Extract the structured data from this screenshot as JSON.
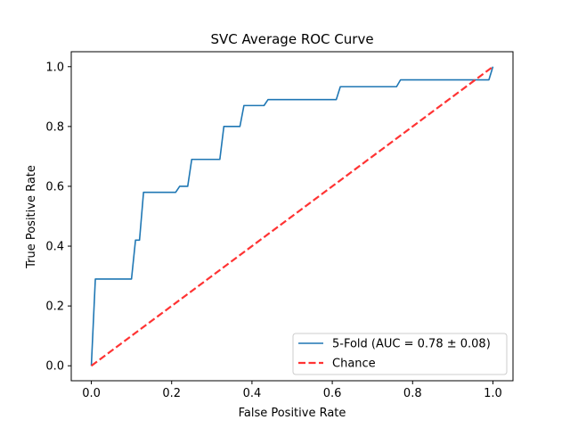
{
  "chart_data": {
    "type": "line",
    "title": "SVC Average ROC Curve",
    "xlabel": "False Positive Rate",
    "ylabel": "True Positive Rate",
    "xlim": [
      -0.05,
      1.05
    ],
    "ylim": [
      -0.05,
      1.05
    ],
    "xticks": [
      0.0,
      0.2,
      0.4,
      0.6,
      0.8,
      1.0
    ],
    "yticks": [
      0.0,
      0.2,
      0.4,
      0.6,
      0.8,
      1.0
    ],
    "xtick_labels": [
      "0.0",
      "0.2",
      "0.4",
      "0.6",
      "0.8",
      "1.0"
    ],
    "ytick_labels": [
      "0.0",
      "0.2",
      "0.4",
      "0.6",
      "0.8",
      "1.0"
    ],
    "grid": false,
    "legend_position": "lower-right",
    "series": [
      {
        "name": "5-Fold (AUC = 0.78 ± 0.08)",
        "color": "#1f77b4",
        "style": "solid",
        "x": [
          0.0,
          0.01,
          0.1,
          0.11,
          0.12,
          0.13,
          0.21,
          0.22,
          0.24,
          0.25,
          0.32,
          0.33,
          0.37,
          0.38,
          0.43,
          0.44,
          0.61,
          0.62,
          0.76,
          0.77,
          0.99,
          1.0
        ],
        "y": [
          0.0,
          0.29,
          0.29,
          0.42,
          0.42,
          0.58,
          0.58,
          0.6,
          0.6,
          0.69,
          0.69,
          0.8,
          0.8,
          0.87,
          0.87,
          0.89,
          0.89,
          0.933,
          0.933,
          0.956,
          0.956,
          1.0
        ]
      },
      {
        "name": "Chance",
        "color": "#ff3333",
        "style": "dashed",
        "x": [
          0.0,
          1.0
        ],
        "y": [
          0.0,
          1.0
        ]
      }
    ]
  }
}
